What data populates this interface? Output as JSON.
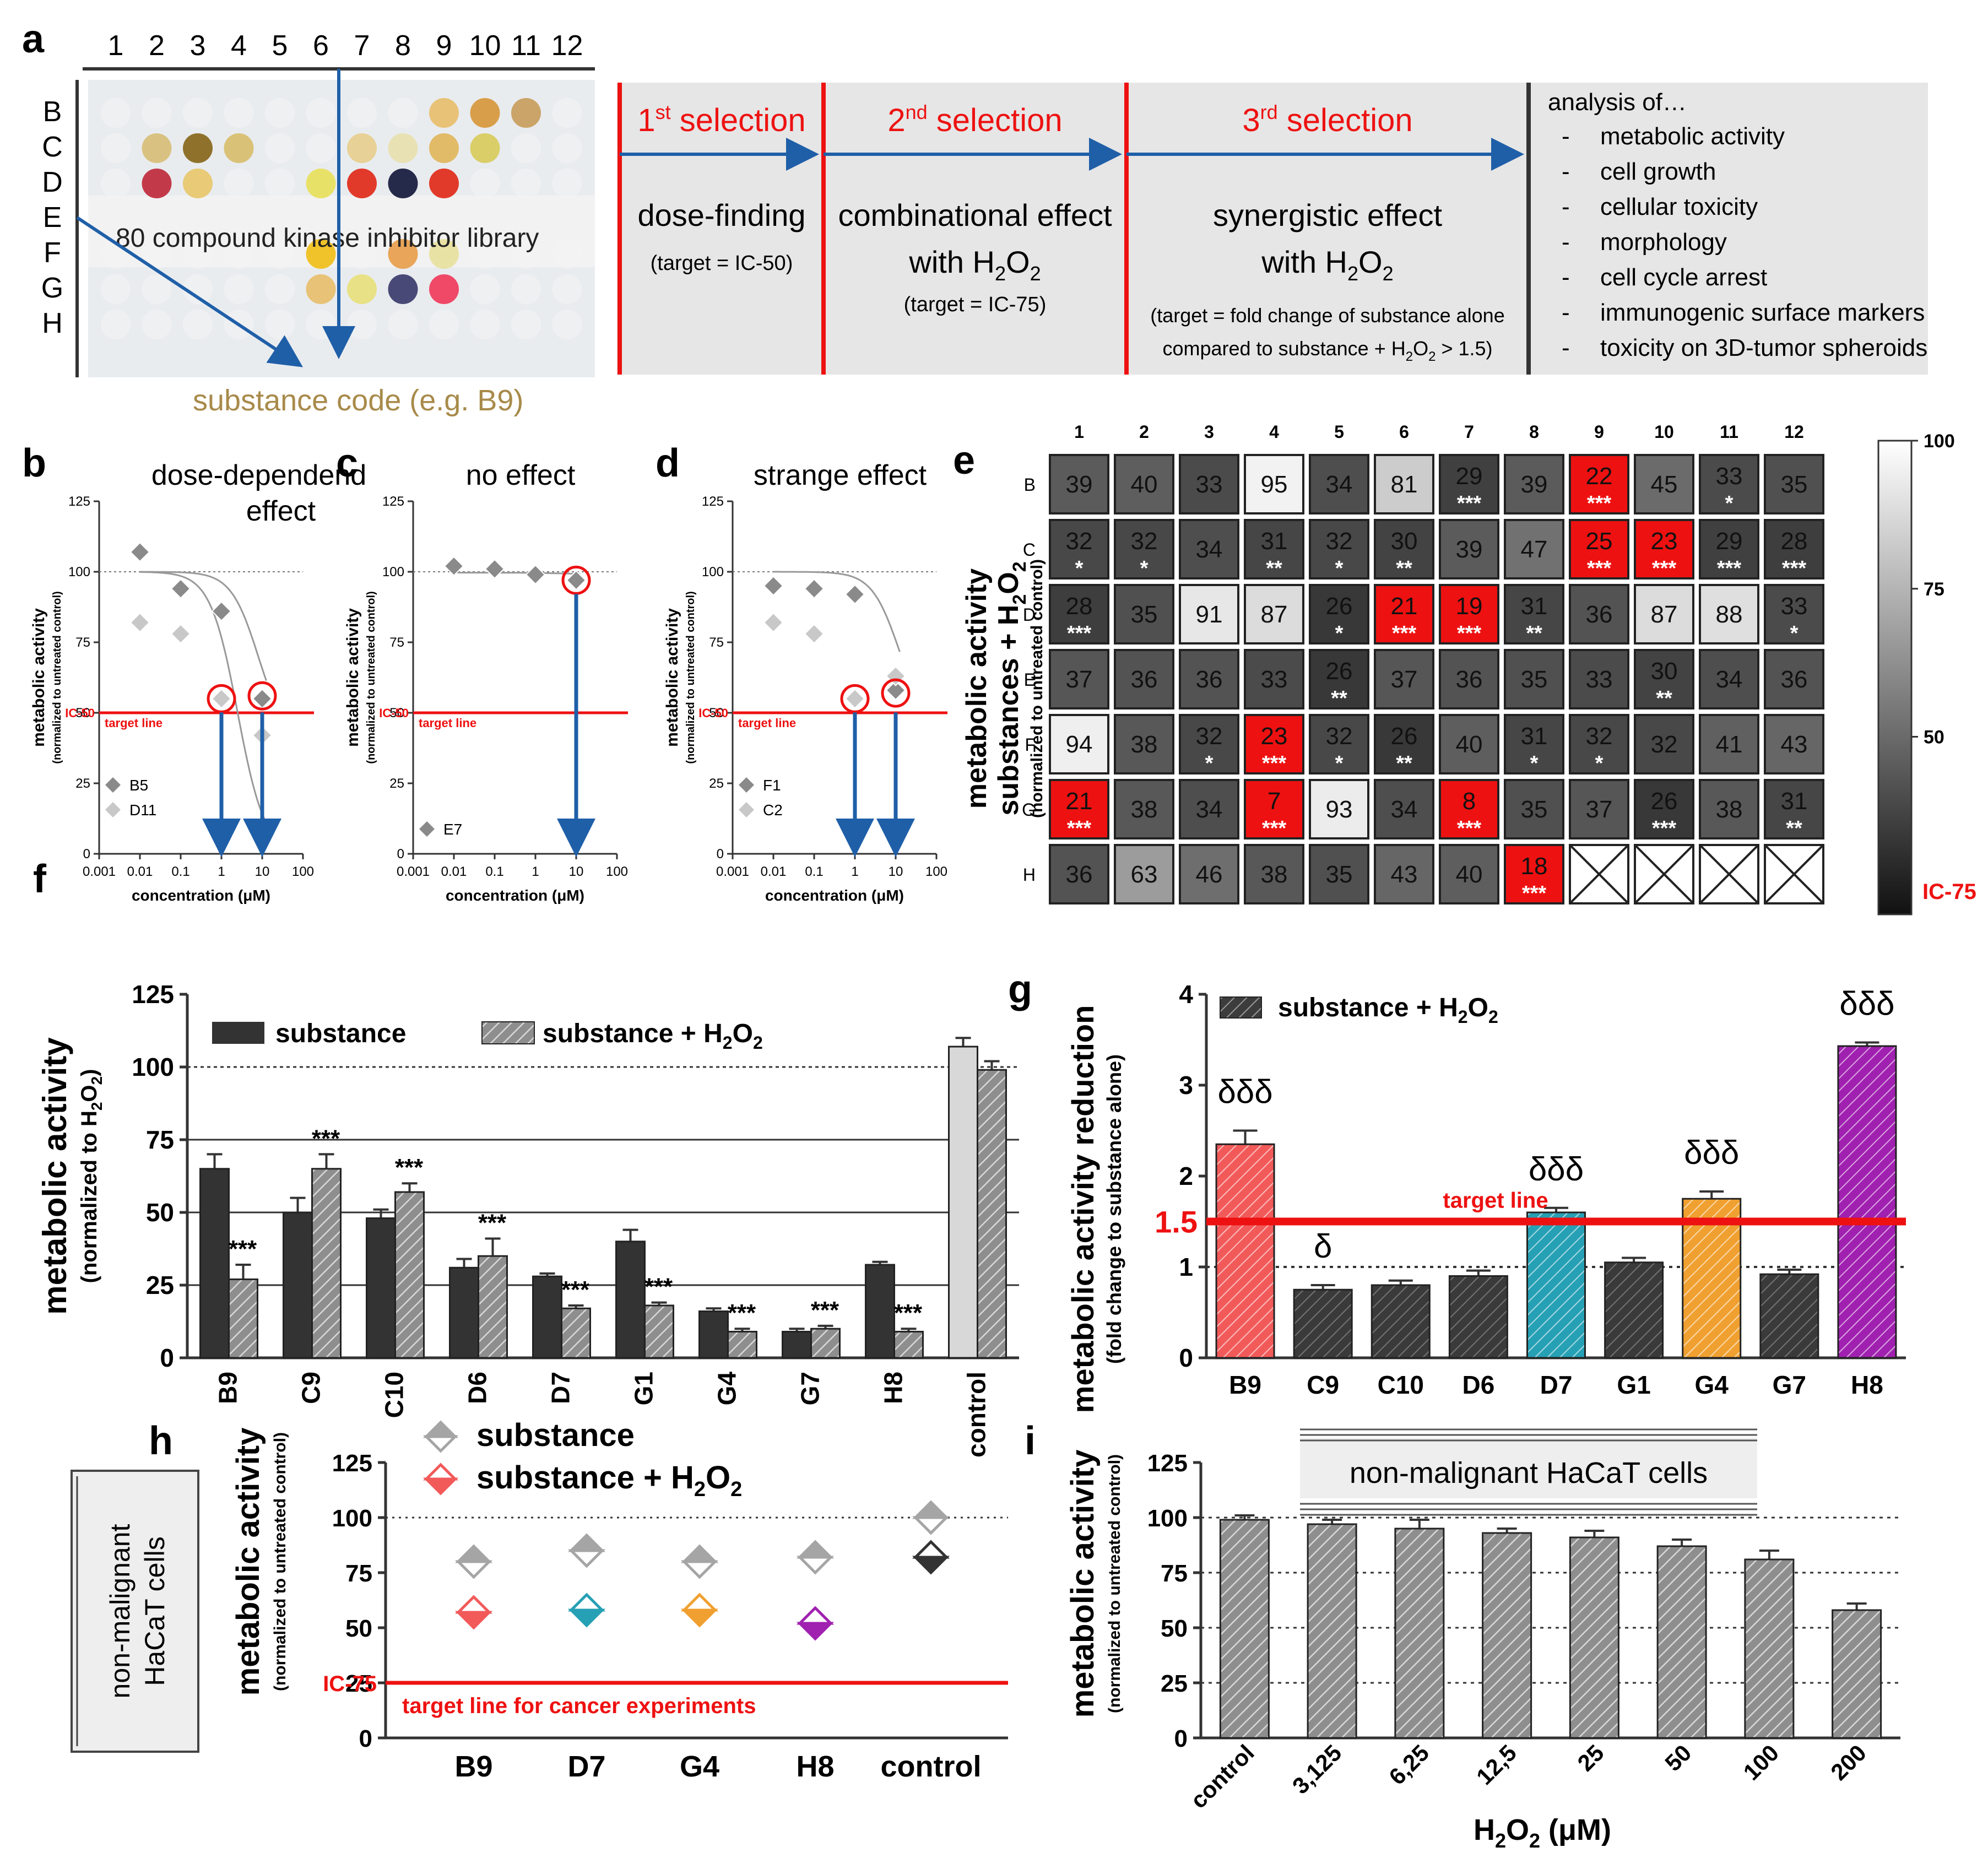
{
  "panel_letters": {
    "a": "a",
    "b": "b",
    "c": "c",
    "d": "d",
    "e": "e",
    "f": "f",
    "g": "g",
    "h": "h",
    "i": "i"
  },
  "panel_a": {
    "cols": [
      "1",
      "2",
      "3",
      "4",
      "5",
      "6",
      "7",
      "8",
      "9",
      "10",
      "11",
      "12"
    ],
    "rows": [
      "B",
      "C",
      "D",
      "E",
      "F",
      "G",
      "H"
    ],
    "library_label": "80 compound kinase inhibitor library",
    "code_label": "substance code (e.g. B9)",
    "steps": [
      {
        "head_num": "1",
        "head_sup": "st",
        "head_rest": " selection",
        "line1": "dose-finding",
        "line2": "",
        "note": "(target = IC-50)"
      },
      {
        "head_num": "2",
        "head_sup": "nd",
        "head_rest": " selection",
        "line1": "combinational effect",
        "line2": "with H",
        "note": "(target = IC-75)"
      },
      {
        "head_num": "3",
        "head_sup": "rd",
        "head_rest": " selection",
        "line1": "synergistic effect",
        "line2": "with H",
        "note": "(target = fold change of substance alone",
        "note2": "compared to substance + H"
      }
    ],
    "analysis_title": "analysis of…",
    "analysis_items": [
      "metabolic activity",
      "cell growth",
      "cellular toxicity",
      "morphology",
      "cell cycle arrest",
      "immunogenic surface markers",
      "toxicity on 3D-tumor spheroids"
    ]
  },
  "dose_common": {
    "ylabel": "metabolic activity",
    "ylabel2": "(normalized to untreated control)",
    "xlabel": "concentration (μM)",
    "ic50": "IC-50",
    "target": "target line",
    "yticks": [
      "0",
      "25",
      "50",
      "75",
      "100",
      "125"
    ],
    "xticks": [
      "0.001",
      "0.01",
      "0.1",
      "1",
      "10",
      "100"
    ]
  },
  "panel_b": {
    "title1": "dose-dependend",
    "title2": "effect",
    "legend": [
      "B5",
      "D11"
    ]
  },
  "panel_c": {
    "title1": "no effect",
    "legend": [
      "E7"
    ]
  },
  "panel_d": {
    "title1": "strange effect",
    "legend": [
      "F1",
      "C2"
    ]
  },
  "panel_e": {
    "ylabel1": "metabolic activity",
    "ylabel2": "substances + H",
    "ylabel3": "(normalized to untreated control)",
    "cols": [
      "1",
      "2",
      "3",
      "4",
      "5",
      "6",
      "7",
      "8",
      "9",
      "10",
      "11",
      "12"
    ],
    "rows": [
      "B",
      "C",
      "D",
      "E",
      "F",
      "G",
      "H"
    ],
    "scale_ticks": [
      "100",
      "75",
      "50"
    ],
    "ic75": "IC-75"
  },
  "panel_f": {
    "ylabel": "metabolic activity",
    "ylabel2": "(normalized to H",
    "legend1": "substance",
    "legend2": "substance + H",
    "yticks": [
      "0",
      "25",
      "50",
      "75",
      "100",
      "125"
    ]
  },
  "panel_g": {
    "ylabel": "metabolic activity reduction",
    "ylabel2": "(fold change to substance alone)",
    "legend": "substance + H",
    "target": "target line",
    "line_label": "1.5",
    "yticks": [
      "0",
      "1",
      "2",
      "3",
      "4"
    ]
  },
  "panel_h": {
    "side_label1": "non-malignant",
    "side_label2": "HaCaT cells",
    "ylabel": "metabolic activity",
    "ylabel2": "(normalized to untreated control)",
    "legend1": "substance",
    "legend2": "substance + H",
    "ic75": "IC-75",
    "target": "target line for cancer experiments",
    "yticks": [
      "0",
      "25",
      "50",
      "75",
      "100",
      "125"
    ]
  },
  "panel_i": {
    "box_label": "non-malignant HaCaT cells",
    "ylabel": "metabolic activity",
    "ylabel2": "(normalized to untreated control)",
    "xlabel": "H",
    "xlabel_unit": " (μM)",
    "yticks": [
      "0",
      "25",
      "50",
      "75",
      "100",
      "125"
    ]
  },
  "colors": {
    "red": "#ee1111",
    "blue": "#1f5fa8",
    "dark": "#333333",
    "grey": "#8c8c8c",
    "gold": "#a88a4a",
    "teal": "#26a0b5",
    "orange": "#f0a030",
    "purple": "#a020b0",
    "salmon": "#f25a5a"
  },
  "chart_data": [
    {
      "id": "b",
      "type": "scatter",
      "title": "dose-dependend effect",
      "xlabel": "concentration (μM)",
      "ylabel": "metabolic activity",
      "ylim": [
        0,
        125
      ],
      "xlim": [
        0.001,
        100
      ],
      "xscale": "log",
      "series": [
        {
          "name": "B5",
          "x": [
            0.01,
            0.1,
            1,
            10
          ],
          "y": [
            107,
            94,
            86,
            55
          ]
        },
        {
          "name": "D11",
          "x": [
            0.01,
            0.1,
            1,
            10
          ],
          "y": [
            82,
            78,
            55,
            42
          ]
        }
      ]
    },
    {
      "id": "c",
      "type": "scatter",
      "title": "no effect",
      "xlabel": "concentration (μM)",
      "ylabel": "metabolic activity",
      "ylim": [
        0,
        125
      ],
      "xlim": [
        0.001,
        100
      ],
      "xscale": "log",
      "series": [
        {
          "name": "E7",
          "x": [
            0.01,
            0.1,
            1,
            10
          ],
          "y": [
            102,
            101,
            99,
            97
          ]
        }
      ]
    },
    {
      "id": "d",
      "type": "scatter",
      "title": "strange effect",
      "xlabel": "concentration (μM)",
      "ylabel": "metabolic activity",
      "ylim": [
        0,
        125
      ],
      "xlim": [
        0.001,
        100
      ],
      "xscale": "log",
      "series": [
        {
          "name": "F1",
          "x": [
            0.01,
            0.1,
            1,
            10
          ],
          "y": [
            95,
            94,
            92,
            58
          ]
        },
        {
          "name": "C2",
          "x": [
            0.01,
            0.1,
            1,
            10
          ],
          "y": [
            82,
            78,
            55,
            63
          ]
        }
      ]
    },
    {
      "id": "e",
      "type": "heatmap",
      "rows": [
        "B",
        "C",
        "D",
        "E",
        "F",
        "G",
        "H"
      ],
      "cols": [
        "1",
        "2",
        "3",
        "4",
        "5",
        "6",
        "7",
        "8",
        "9",
        "10",
        "11",
        "12"
      ],
      "values": [
        [
          39,
          40,
          33,
          95,
          34,
          81,
          29,
          39,
          22,
          45,
          33,
          35
        ],
        [
          32,
          32,
          34,
          31,
          32,
          30,
          39,
          47,
          25,
          23,
          29,
          28
        ],
        [
          28,
          35,
          91,
          87,
          26,
          21,
          19,
          31,
          36,
          87,
          88,
          33
        ],
        [
          37,
          36,
          36,
          33,
          26,
          37,
          36,
          35,
          33,
          30,
          34,
          36
        ],
        [
          94,
          38,
          32,
          23,
          32,
          26,
          40,
          31,
          32,
          32,
          41,
          43
        ],
        [
          21,
          38,
          34,
          7,
          93,
          34,
          8,
          35,
          37,
          26,
          38,
          31
        ],
        [
          36,
          63,
          46,
          38,
          35,
          43,
          40,
          18,
          null,
          null,
          null,
          null
        ]
      ],
      "stars": [
        [
          "",
          "",
          "",
          "",
          "",
          "",
          "***",
          "",
          "***",
          "",
          "*",
          ""
        ],
        [
          "*",
          "*",
          "",
          "**",
          "*",
          "**",
          "",
          "",
          "***",
          "***",
          "***",
          "***"
        ],
        [
          "***",
          "",
          "",
          "",
          "*",
          "***",
          "***",
          "**",
          "",
          "",
          "",
          "*"
        ],
        [
          "",
          "",
          "",
          "",
          "**",
          "",
          "",
          "",
          "",
          "**",
          "",
          ""
        ],
        [
          "",
          "",
          "*",
          "***",
          "*",
          "**",
          "",
          "*",
          "*",
          "",
          "",
          ""
        ],
        [
          "***",
          "",
          "",
          "***",
          "",
          "",
          "***",
          "",
          "",
          "***",
          "",
          "**"
        ],
        [
          "",
          "",
          "",
          "",
          "",
          "",
          "",
          "***",
          "",
          "",
          "",
          ""
        ]
      ],
      "highlight": [
        [
          0,
          8
        ],
        [
          1,
          8
        ],
        [
          1,
          9
        ],
        [
          2,
          5
        ],
        [
          2,
          6
        ],
        [
          4,
          3
        ],
        [
          5,
          0
        ],
        [
          5,
          3
        ],
        [
          5,
          6
        ],
        [
          6,
          7
        ]
      ],
      "colorscale": {
        "min": 20,
        "max": 100,
        "low_label": "IC-75"
      }
    },
    {
      "id": "f",
      "type": "bar",
      "ylabel": "metabolic activity (normalized to H2O2)",
      "ylim": [
        0,
        125
      ],
      "categories": [
        "B9",
        "C9",
        "C10",
        "D6",
        "D7",
        "G1",
        "G4",
        "G7",
        "H8",
        "control"
      ],
      "series": [
        {
          "name": "substance",
          "values": [
            65,
            50,
            48,
            31,
            28,
            40,
            16,
            9,
            32,
            107
          ],
          "errors": [
            5,
            5,
            3,
            3,
            1,
            4,
            1,
            1,
            1,
            3
          ]
        },
        {
          "name": "substance + H2O2",
          "values": [
            27,
            65,
            57,
            35,
            17,
            18,
            9,
            10,
            9,
            99
          ],
          "errors": [
            5,
            5,
            3,
            6,
            1,
            1,
            1,
            1,
            1,
            3
          ]
        }
      ],
      "annotations": [
        "***",
        "***",
        "***",
        "***",
        "***",
        "***",
        "***",
        "***",
        "***",
        ""
      ]
    },
    {
      "id": "g",
      "type": "bar",
      "ylabel": "metabolic activity reduction",
      "ylim": [
        0,
        4
      ],
      "categories": [
        "B9",
        "C9",
        "C10",
        "D6",
        "D7",
        "G1",
        "G4",
        "G7",
        "H8"
      ],
      "values": [
        2.35,
        0.75,
        0.8,
        0.9,
        1.6,
        1.05,
        1.75,
        0.92,
        3.43
      ],
      "errors": [
        0.15,
        0.05,
        0.05,
        0.06,
        0.05,
        0.05,
        0.08,
        0.05,
        0.04
      ],
      "bar_colors": [
        "#f25a5a",
        "#3a3a3a",
        "#3a3a3a",
        "#3a3a3a",
        "#26a0b5",
        "#3a3a3a",
        "#f0a030",
        "#3a3a3a",
        "#a020b0"
      ],
      "annotations": [
        "δδδ",
        "δ",
        "",
        "",
        "δδδ",
        "",
        "δδδ",
        "",
        "δδδ"
      ],
      "target": 1.5
    },
    {
      "id": "h",
      "type": "scatter",
      "ylabel": "metabolic activity",
      "ylim": [
        0,
        125
      ],
      "categories": [
        "B9",
        "D7",
        "G4",
        "H8",
        "control"
      ],
      "series": [
        {
          "name": "substance",
          "values": [
            80,
            85,
            80,
            82,
            100
          ]
        },
        {
          "name": "substance + H2O2",
          "values": [
            57,
            58,
            58,
            52,
            82
          ]
        }
      ],
      "target": 25
    },
    {
      "id": "i",
      "type": "bar",
      "ylabel": "metabolic activity",
      "ylim": [
        0,
        125
      ],
      "categories": [
        "control",
        "3,125",
        "6,25",
        "12,5",
        "25",
        "50",
        "100",
        "200"
      ],
      "values": [
        99,
        97,
        95,
        93,
        91,
        87,
        81,
        58
      ],
      "errors": [
        2,
        2,
        4,
        2,
        3,
        3,
        4,
        3
      ]
    }
  ]
}
